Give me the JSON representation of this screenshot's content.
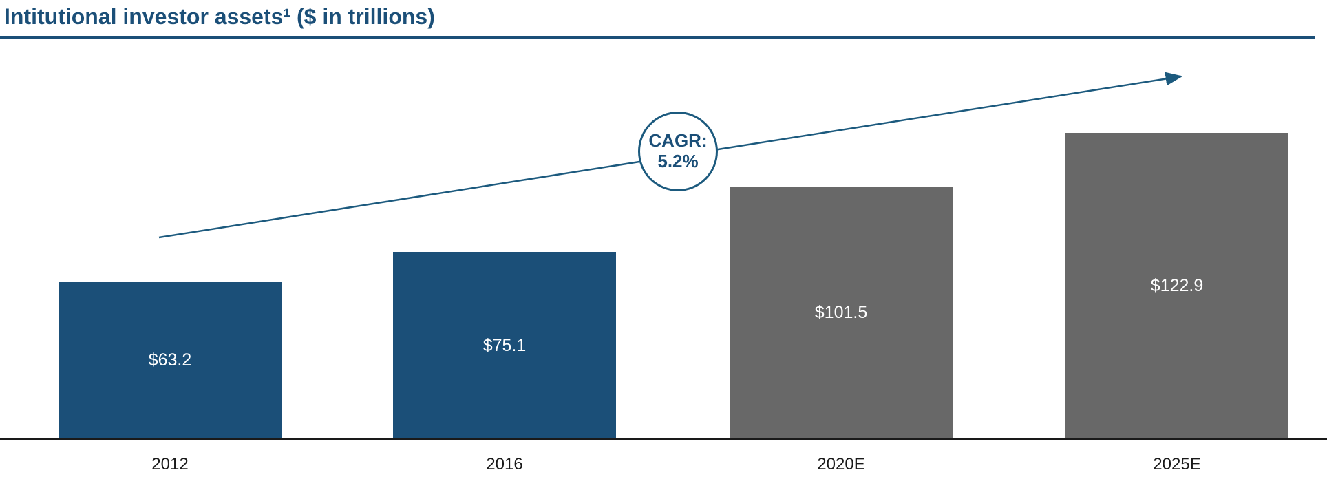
{
  "title": "Intitutional investor assets¹ ($ in trillions)",
  "colors": {
    "accent": "#1B4F78",
    "bar_blue": "#1B4F78",
    "bar_gray": "#686868",
    "trend_line": "#1C5A7E",
    "axis": "#1a1a1a",
    "value_label": "#ffffff"
  },
  "chart_data": {
    "type": "bar",
    "title": "Intitutional investor assets¹ ($ in trillions)",
    "xlabel": "",
    "ylabel": "Institutional investor assets ($ in trillions)",
    "categories": [
      "2012",
      "2016",
      "2020E",
      "2025E"
    ],
    "values": [
      63.2,
      75.1,
      101.5,
      122.9
    ],
    "value_labels": [
      "$63.2",
      "$75.1",
      "$101.5",
      "$122.9"
    ],
    "bar_colors": [
      "#1B4F78",
      "#1B4F78",
      "#686868",
      "#686868"
    ],
    "ylim": [
      0,
      130
    ],
    "grid": false,
    "legend": false,
    "annotation": {
      "line1": "CAGR:",
      "line2": "5.2%",
      "meaning": "compound annual growth rate trend arrow across bars"
    }
  }
}
